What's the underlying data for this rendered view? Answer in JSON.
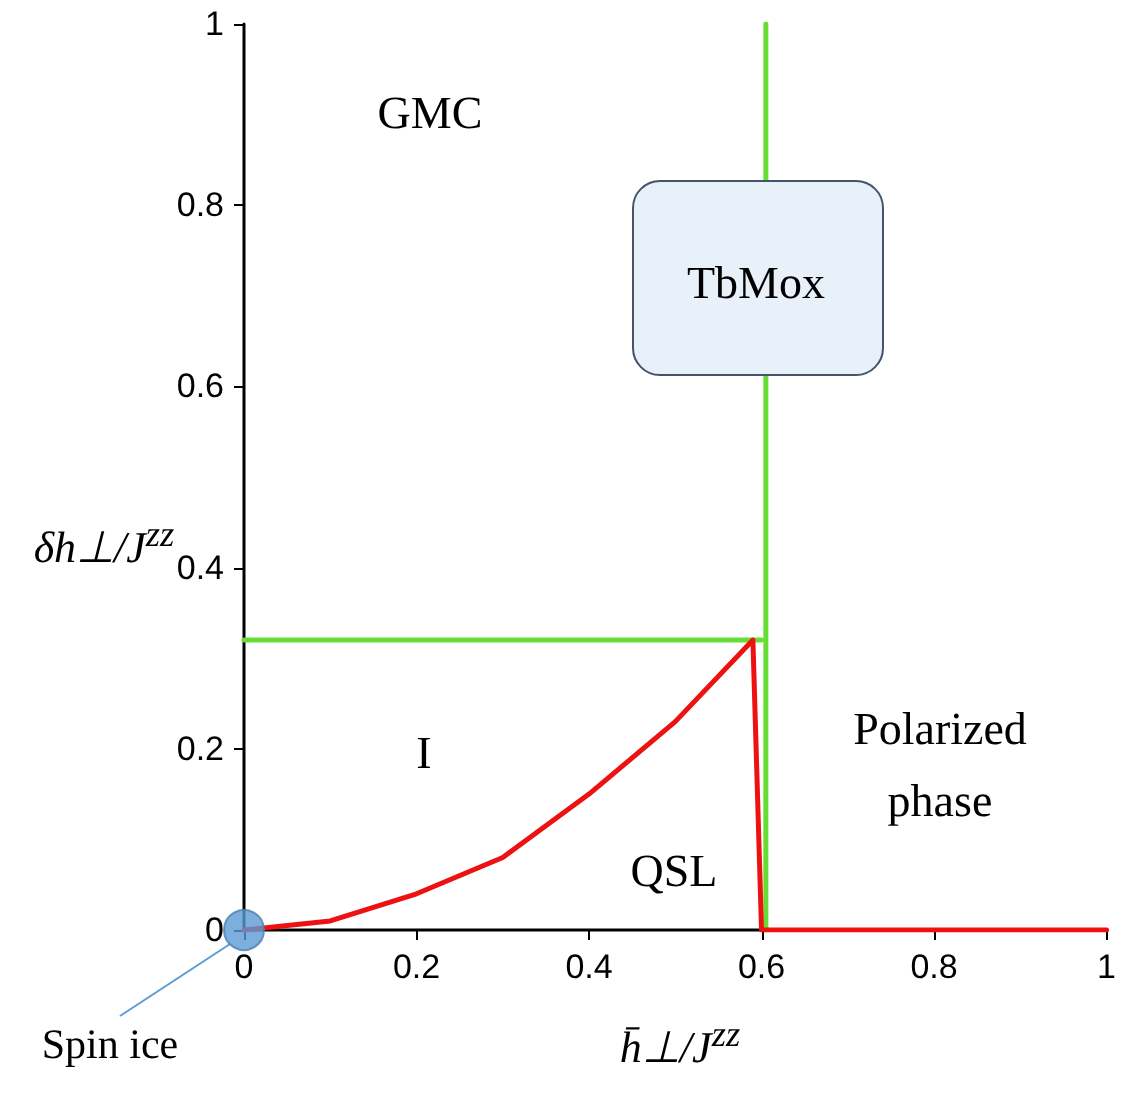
{
  "chart_data": {
    "type": "line",
    "xlabel": "h̄⊥/J$^{zz}$",
    "ylabel": "δh⊥/J$^{zz}$",
    "xlim": [
      0,
      1
    ],
    "ylim": [
      0,
      1
    ],
    "xticks": [
      0,
      0.2,
      0.4,
      0.6,
      0.8,
      1
    ],
    "yticks": [
      0,
      0.2,
      0.4,
      0.6,
      0.8,
      1
    ],
    "grid": false,
    "line_style": "solid",
    "marker": "none",
    "series": [
      {
        "color": "#66dd33",
        "x": [
          0,
          0.6
        ],
        "values": [
          0.32,
          0.32
        ]
      },
      {
        "color": "#66dd33",
        "x": [
          0.605,
          0.605
        ],
        "values": [
          0,
          1
        ]
      },
      {
        "color": "#ee1111",
        "x": [
          0,
          0.1,
          0.2,
          0.3,
          0.4,
          0.5,
          0.59,
          0.6,
          1
        ],
        "values": [
          0,
          0.01,
          0.04,
          0.08,
          0.15,
          0.23,
          0.32,
          0,
          0
        ]
      },
      {
        "type": "scatter",
        "color": "#5b9bd5",
        "marker": "circle",
        "x": [
          0
        ],
        "values": [
          0
        ]
      }
    ],
    "annotations": [
      "GMC",
      "TbMox",
      "I",
      "QSL",
      "Polarized\nphase",
      "Spin ice"
    ]
  }
}
